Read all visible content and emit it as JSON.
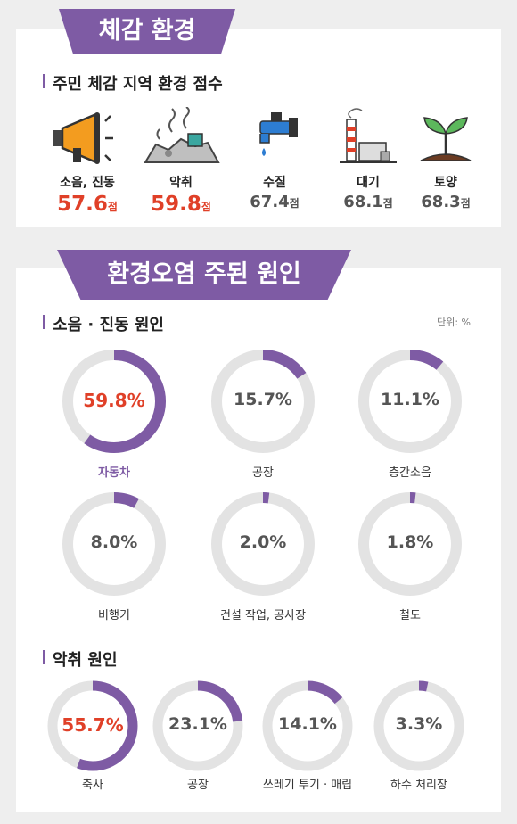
{
  "colors": {
    "accent": "#7e5ba4",
    "highlight": "#e04028",
    "ring_bg": "#e3e3e3",
    "background": "#eeeeee"
  },
  "section1": {
    "ribbon": "체감 환경",
    "title": "주민 체감 지역 환경 점수",
    "items": [
      {
        "icon": "megaphone-icon",
        "label": "소음, 진동",
        "value": "57.6",
        "unit": "점"
      },
      {
        "icon": "garbage-pile-icon",
        "label": "악취",
        "value": "59.8",
        "unit": "점"
      },
      {
        "icon": "faucet-icon",
        "label": "수질",
        "value": "67.4",
        "unit": "점"
      },
      {
        "icon": "factory-icon",
        "label": "대기",
        "value": "68.1",
        "unit": "점"
      },
      {
        "icon": "sprout-icon",
        "label": "토양",
        "value": "68.3",
        "unit": "점"
      }
    ]
  },
  "section2": {
    "ribbon": "환경오염 주된 원인",
    "noise_title": "소음 · 진동 원인",
    "unit_note": "단위: %",
    "odor_title": "악취 원인"
  },
  "chart_data": [
    {
      "type": "bar",
      "categories": [
        "소음, 진동",
        "악취",
        "수질",
        "대기",
        "토양"
      ],
      "values": [
        57.6,
        59.8,
        67.4,
        68.1,
        68.3
      ]
    },
    {
      "type": "pie",
      "categories": [
        "자동차",
        "공장",
        "층간소음",
        "비행기",
        "건설 작업, 공사장",
        "철도"
      ],
      "values": [
        59.8,
        15.7,
        11.1,
        8.0,
        2.0,
        1.8
      ],
      "value_labels": [
        "59.8%",
        "15.7%",
        "11.1%",
        "8.0%",
        "2.0%",
        "1.8%"
      ]
    },
    {
      "type": "pie",
      "categories": [
        "축사",
        "공장",
        "쓰레기 투기 · 매립",
        "하수 처리장"
      ],
      "values": [
        55.7,
        23.1,
        14.1,
        3.3
      ],
      "value_labels": [
        "55.7%",
        "23.1%",
        "14.1%",
        "3.3%"
      ]
    }
  ]
}
